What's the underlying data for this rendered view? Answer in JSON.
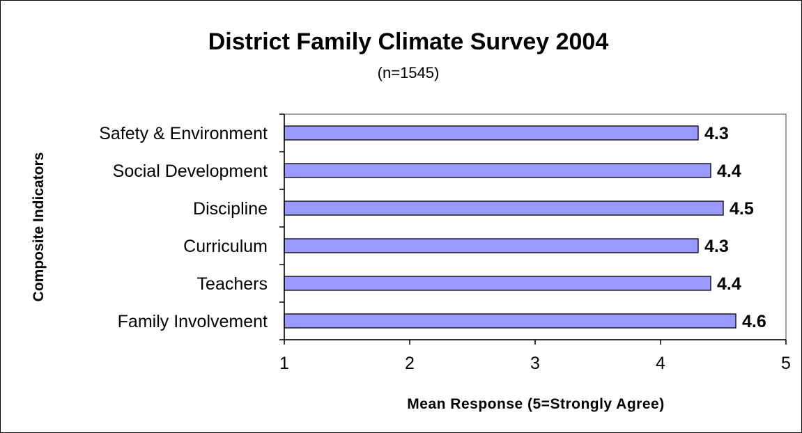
{
  "chart_data": {
    "type": "bar",
    "orientation": "horizontal",
    "title": "District Family Climate Survey 2004",
    "subtitle": "(n=1545)",
    "xlabel": "Mean  Response (5=Strongly Agree)",
    "ylabel": "Composite Indicators",
    "categories": [
      "Safety & Environment",
      "Social Development",
      "Discipline",
      "Curriculum",
      "Teachers",
      "Family Involvement"
    ],
    "values": [
      4.3,
      4.4,
      4.5,
      4.3,
      4.4,
      4.6
    ],
    "data_labels": [
      "4.3",
      "4.4",
      "4.5",
      "4.3",
      "4.4",
      "4.6"
    ],
    "xlim": [
      1,
      5
    ],
    "xticks": [
      "1",
      "2",
      "3",
      "4",
      "5"
    ],
    "grid": false,
    "legend": "none",
    "bar_color": "#9999FF",
    "bar_edge_color": "#000000",
    "plot_border_color": "#808080"
  }
}
